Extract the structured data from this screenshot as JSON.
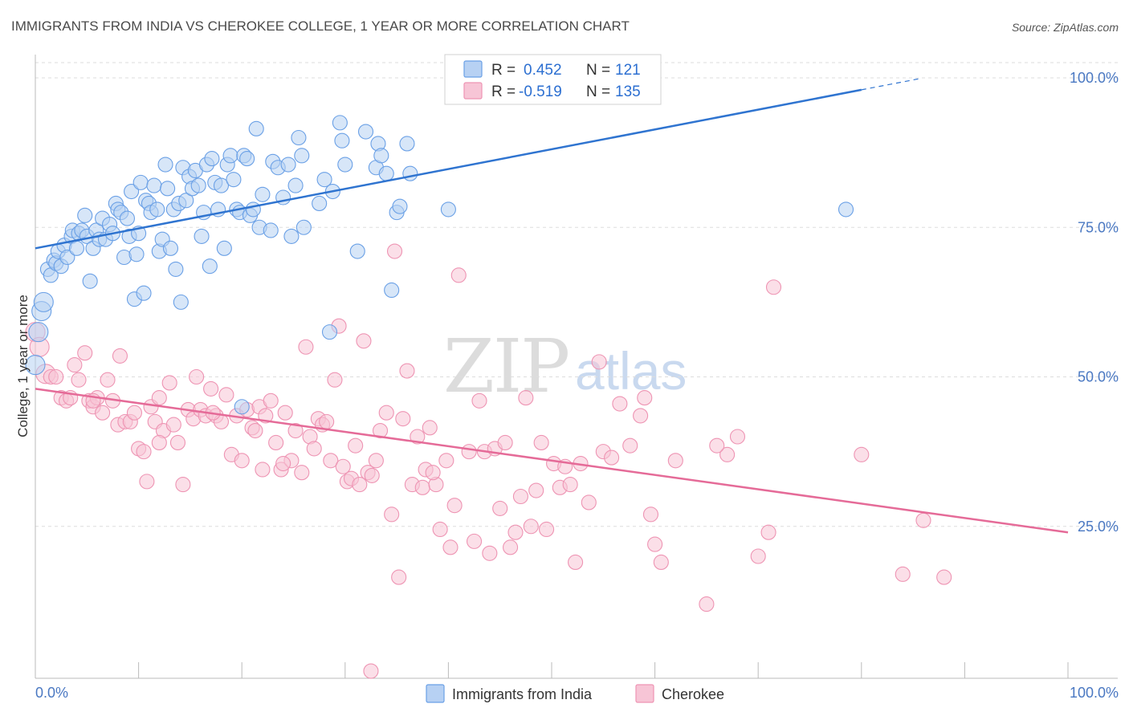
{
  "title": "IMMIGRANTS FROM INDIA VS CHEROKEE COLLEGE, 1 YEAR OR MORE CORRELATION CHART",
  "source": "Source: ZipAtlas.com",
  "watermark": {
    "zip": "ZIP",
    "atlas": "atlas"
  },
  "legend": {
    "r_label": "R =",
    "n_label": "N =",
    "rows": [
      {
        "r": "0.452",
        "n": "121",
        "color": "#6aa0e6"
      },
      {
        "r": "-0.519",
        "n": "135",
        "color": "#f08db0"
      }
    ]
  },
  "colors": {
    "blue_fill": "#b7d1f3",
    "blue_stroke": "#6aa0e6",
    "blue_line": "#2f74d0",
    "pink_fill": "#f7c5d6",
    "pink_stroke": "#ee94b3",
    "pink_line": "#e56b98",
    "grid": "#dddddd",
    "tick_text": "#4a78c2"
  },
  "chart_data": {
    "type": "scatter",
    "title": "IMMIGRANTS FROM INDIA VS CHEROKEE COLLEGE, 1 YEAR OR MORE CORRELATION CHART",
    "xlabel": "",
    "ylabel": "College, 1 year or more",
    "xlim": [
      0,
      100
    ],
    "ylim": [
      0,
      102
    ],
    "x_tick_labels": [
      "0.0%",
      "100.0%"
    ],
    "y_tick_labels": [
      "25.0%",
      "50.0%",
      "75.0%",
      "100.0%"
    ],
    "y_ticks": [
      25,
      50,
      75,
      100
    ],
    "grid": true,
    "legend_position": "top-center",
    "series": [
      {
        "name": "Immigrants from India",
        "r": 0.452,
        "n": 121,
        "trend": {
          "x0": 0,
          "y0": 71.5,
          "x1": 80,
          "y1": 98.0,
          "dash_to": 85.5
        },
        "points": [
          [
            0.0,
            52.0
          ],
          [
            0.3,
            57.5
          ],
          [
            0.6,
            61.0
          ],
          [
            0.8,
            62.5
          ],
          [
            1.2,
            68.0
          ],
          [
            1.5,
            67.0
          ],
          [
            1.8,
            69.5
          ],
          [
            2.0,
            69.0
          ],
          [
            2.2,
            71.0
          ],
          [
            2.5,
            68.5
          ],
          [
            2.8,
            72.0
          ],
          [
            3.1,
            70.0
          ],
          [
            3.5,
            73.5
          ],
          [
            3.6,
            74.5
          ],
          [
            4.0,
            71.5
          ],
          [
            4.2,
            74.0
          ],
          [
            4.5,
            74.5
          ],
          [
            4.8,
            77.0
          ],
          [
            5.0,
            73.5
          ],
          [
            5.3,
            66.0
          ],
          [
            5.6,
            71.5
          ],
          [
            5.9,
            74.5
          ],
          [
            6.2,
            73.0
          ],
          [
            6.5,
            76.5
          ],
          [
            6.8,
            73.0
          ],
          [
            7.2,
            75.5
          ],
          [
            7.5,
            74.0
          ],
          [
            7.8,
            79.0
          ],
          [
            8.0,
            78.0
          ],
          [
            8.3,
            77.5
          ],
          [
            8.6,
            70.0
          ],
          [
            8.9,
            76.5
          ],
          [
            9.1,
            73.5
          ],
          [
            9.3,
            81.0
          ],
          [
            9.6,
            63.0
          ],
          [
            9.8,
            70.5
          ],
          [
            10.0,
            74.0
          ],
          [
            10.2,
            82.5
          ],
          [
            10.5,
            64.0
          ],
          [
            10.7,
            79.5
          ],
          [
            11.0,
            79.0
          ],
          [
            11.2,
            77.5
          ],
          [
            11.5,
            82.0
          ],
          [
            11.8,
            78.0
          ],
          [
            12.0,
            71.0
          ],
          [
            12.3,
            73.0
          ],
          [
            12.6,
            85.5
          ],
          [
            12.8,
            81.5
          ],
          [
            13.1,
            71.5
          ],
          [
            13.4,
            78.0
          ],
          [
            13.6,
            68.0
          ],
          [
            13.9,
            79.0
          ],
          [
            14.1,
            62.5
          ],
          [
            14.3,
            85.0
          ],
          [
            14.6,
            79.5
          ],
          [
            14.9,
            83.5
          ],
          [
            15.2,
            81.5
          ],
          [
            15.5,
            84.5
          ],
          [
            15.8,
            82.0
          ],
          [
            16.1,
            73.5
          ],
          [
            16.3,
            77.5
          ],
          [
            16.6,
            85.5
          ],
          [
            16.9,
            68.5
          ],
          [
            17.1,
            86.5
          ],
          [
            17.4,
            82.5
          ],
          [
            17.7,
            78.0
          ],
          [
            18.0,
            82.0
          ],
          [
            18.3,
            71.5
          ],
          [
            18.6,
            85.5
          ],
          [
            18.9,
            87.0
          ],
          [
            19.2,
            83.0
          ],
          [
            19.5,
            78.0
          ],
          [
            19.8,
            77.5
          ],
          [
            20.0,
            45.0
          ],
          [
            20.2,
            87.0
          ],
          [
            20.5,
            86.5
          ],
          [
            20.8,
            77.0
          ],
          [
            21.1,
            78.0
          ],
          [
            21.4,
            91.5
          ],
          [
            21.7,
            75.0
          ],
          [
            22.0,
            80.5
          ],
          [
            22.8,
            74.5
          ],
          [
            23.0,
            86.0
          ],
          [
            23.5,
            85.0
          ],
          [
            24.0,
            80.0
          ],
          [
            24.5,
            85.5
          ],
          [
            24.8,
            73.5
          ],
          [
            25.2,
            82.0
          ],
          [
            25.5,
            90.0
          ],
          [
            25.8,
            87.0
          ],
          [
            26.0,
            75.0
          ],
          [
            27.5,
            79.0
          ],
          [
            28.0,
            83.0
          ],
          [
            28.5,
            57.5
          ],
          [
            28.8,
            81.0
          ],
          [
            29.5,
            92.5
          ],
          [
            29.7,
            89.5
          ],
          [
            30.0,
            85.5
          ],
          [
            31.2,
            71.0
          ],
          [
            32.0,
            91.0
          ],
          [
            33.0,
            85.0
          ],
          [
            33.2,
            89.0
          ],
          [
            33.5,
            87.0
          ],
          [
            34.0,
            84.0
          ],
          [
            34.5,
            64.5
          ],
          [
            35.0,
            77.5
          ],
          [
            35.3,
            78.5
          ],
          [
            36.0,
            89.0
          ],
          [
            36.3,
            84.0
          ],
          [
            40.0,
            78.0
          ],
          [
            78.5,
            78.0
          ]
        ]
      },
      {
        "name": "Cherokee",
        "r": -0.519,
        "n": 135,
        "trend": {
          "x0": 0,
          "y0": 48.0,
          "x1": 100,
          "y1": 24.0
        },
        "points": [
          [
            0.0,
            57.5
          ],
          [
            0.4,
            55.0
          ],
          [
            1.0,
            50.5
          ],
          [
            1.5,
            50.0
          ],
          [
            2.0,
            50.0
          ],
          [
            2.5,
            46.5
          ],
          [
            3.0,
            46.0
          ],
          [
            3.4,
            46.5
          ],
          [
            3.8,
            52.0
          ],
          [
            4.2,
            49.5
          ],
          [
            4.8,
            54.0
          ],
          [
            5.2,
            46.0
          ],
          [
            5.6,
            45.0
          ],
          [
            6.0,
            46.5
          ],
          [
            6.5,
            44.0
          ],
          [
            7.0,
            49.5
          ],
          [
            7.5,
            46.0
          ],
          [
            8.0,
            42.0
          ],
          [
            8.2,
            53.5
          ],
          [
            8.7,
            42.5
          ],
          [
            9.2,
            42.5
          ],
          [
            9.6,
            44.0
          ],
          [
            10.0,
            38.0
          ],
          [
            10.5,
            37.5
          ],
          [
            10.8,
            32.5
          ],
          [
            11.2,
            45.0
          ],
          [
            11.6,
            42.5
          ],
          [
            12.0,
            46.5
          ],
          [
            12.4,
            41.0
          ],
          [
            13.0,
            49.0
          ],
          [
            13.4,
            42.0
          ],
          [
            13.8,
            39.0
          ],
          [
            14.3,
            32.0
          ],
          [
            14.8,
            44.5
          ],
          [
            15.3,
            43.0
          ],
          [
            15.6,
            50.0
          ],
          [
            16.0,
            44.5
          ],
          [
            16.5,
            43.5
          ],
          [
            17.0,
            48.0
          ],
          [
            17.5,
            43.5
          ],
          [
            18.0,
            42.5
          ],
          [
            18.5,
            47.0
          ],
          [
            19.0,
            37.0
          ],
          [
            19.5,
            43.5
          ],
          [
            20.0,
            36.0
          ],
          [
            20.5,
            44.5
          ],
          [
            21.0,
            41.5
          ],
          [
            21.3,
            41.0
          ],
          [
            21.7,
            45.0
          ],
          [
            22.0,
            34.5
          ],
          [
            22.3,
            43.5
          ],
          [
            22.8,
            46.0
          ],
          [
            23.3,
            39.0
          ],
          [
            23.8,
            34.5
          ],
          [
            24.2,
            44.0
          ],
          [
            24.8,
            36.0
          ],
          [
            25.2,
            41.0
          ],
          [
            25.8,
            34.0
          ],
          [
            26.2,
            55.0
          ],
          [
            26.6,
            40.0
          ],
          [
            27.0,
            38.0
          ],
          [
            27.4,
            43.0
          ],
          [
            27.8,
            42.0
          ],
          [
            28.2,
            42.5
          ],
          [
            28.6,
            36.0
          ],
          [
            29.0,
            49.5
          ],
          [
            29.4,
            58.5
          ],
          [
            29.8,
            35.0
          ],
          [
            30.2,
            32.5
          ],
          [
            30.6,
            33.0
          ],
          [
            31.0,
            38.5
          ],
          [
            31.4,
            32.0
          ],
          [
            31.8,
            56.0
          ],
          [
            32.2,
            34.0
          ],
          [
            32.6,
            33.5
          ],
          [
            33.0,
            36.0
          ],
          [
            33.4,
            41.0
          ],
          [
            34.0,
            44.0
          ],
          [
            34.5,
            27.0
          ],
          [
            34.8,
            71.0
          ],
          [
            35.2,
            16.5
          ],
          [
            35.6,
            43.0
          ],
          [
            36.0,
            51.0
          ],
          [
            36.5,
            32.0
          ],
          [
            37.0,
            40.0
          ],
          [
            37.5,
            31.5
          ],
          [
            37.8,
            34.5
          ],
          [
            38.2,
            41.5
          ],
          [
            38.8,
            32.0
          ],
          [
            39.2,
            24.5
          ],
          [
            39.8,
            36.0
          ],
          [
            40.2,
            21.5
          ],
          [
            40.6,
            28.5
          ],
          [
            41.0,
            67.0
          ],
          [
            42.0,
            37.5
          ],
          [
            42.5,
            22.5
          ],
          [
            43.0,
            46.0
          ],
          [
            43.5,
            37.5
          ],
          [
            44.0,
            20.5
          ],
          [
            44.5,
            38.0
          ],
          [
            45.0,
            28.0
          ],
          [
            45.5,
            39.0
          ],
          [
            46.0,
            21.5
          ],
          [
            46.5,
            24.0
          ],
          [
            47.0,
            30.0
          ],
          [
            47.5,
            46.5
          ],
          [
            48.0,
            25.0
          ],
          [
            48.5,
            31.0
          ],
          [
            49.0,
            39.0
          ],
          [
            49.5,
            24.5
          ],
          [
            50.2,
            35.5
          ],
          [
            50.8,
            31.5
          ],
          [
            51.3,
            35.0
          ],
          [
            51.8,
            32.0
          ],
          [
            52.3,
            19.0
          ],
          [
            52.8,
            35.5
          ],
          [
            53.6,
            29.0
          ],
          [
            54.6,
            52.5
          ],
          [
            55.0,
            37.5
          ],
          [
            55.8,
            36.5
          ],
          [
            56.6,
            45.5
          ],
          [
            57.6,
            38.5
          ],
          [
            58.6,
            43.5
          ],
          [
            59.0,
            46.5
          ],
          [
            59.6,
            27.0
          ],
          [
            60.0,
            22.0
          ],
          [
            60.6,
            19.0
          ],
          [
            62.0,
            36.0
          ],
          [
            65.0,
            12.0
          ],
          [
            67.0,
            37.0
          ],
          [
            68.0,
            40.0
          ],
          [
            70.0,
            20.0
          ],
          [
            71.0,
            24.0
          ],
          [
            71.5,
            65.0
          ],
          [
            80.0,
            37.0
          ],
          [
            84.0,
            17.0
          ],
          [
            86.0,
            26.0
          ],
          [
            88.0,
            16.5
          ],
          [
            32.5,
            0.8
          ],
          [
            5.6,
            46.0
          ],
          [
            12.0,
            39.0
          ],
          [
            17.2,
            44.0
          ],
          [
            24.0,
            35.5
          ],
          [
            38.5,
            34.0
          ],
          [
            66.0,
            38.5
          ]
        ]
      }
    ]
  },
  "bottom_legend": [
    {
      "label": "Immigrants from India"
    },
    {
      "label": "Cherokee"
    }
  ]
}
